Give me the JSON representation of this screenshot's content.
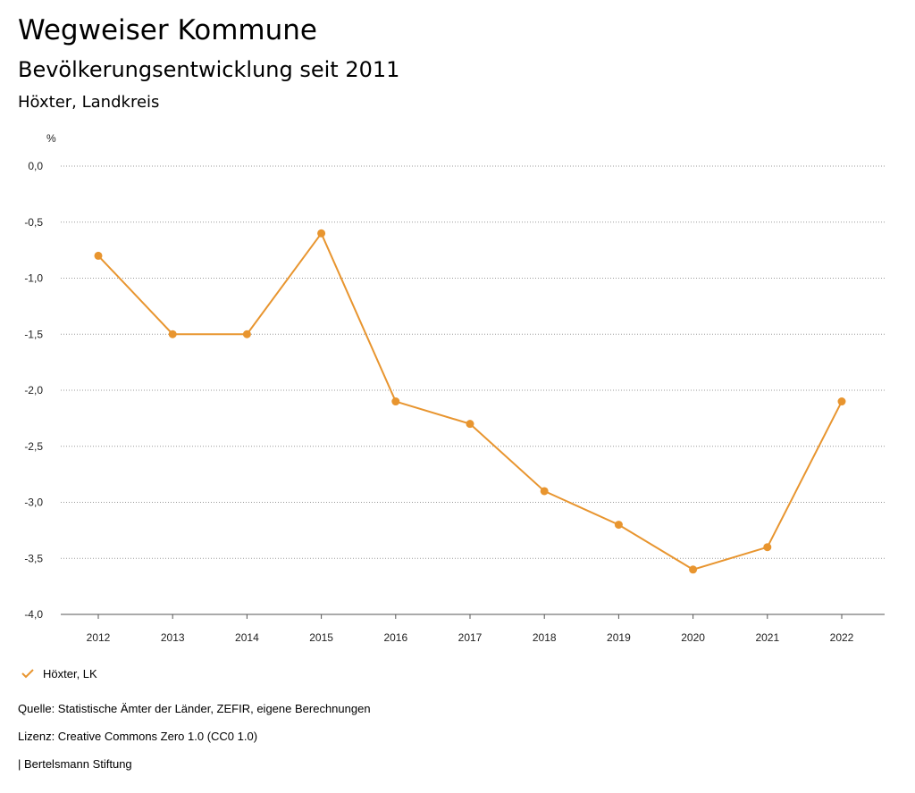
{
  "header": {
    "title": "Wegweiser Kommune",
    "subtitle": "Bevölkerungsentwicklung seit 2011",
    "region": "Höxter, Landkreis"
  },
  "chart_data": {
    "type": "line",
    "ylabel": "%",
    "xlabel": "",
    "ylim": [
      -4.0,
      0.0
    ],
    "y_ticks": [
      0.0,
      -0.5,
      -1.0,
      -1.5,
      -2.0,
      -2.5,
      -3.0,
      -3.5,
      -4.0
    ],
    "y_tick_labels": [
      "0,0",
      "-0,5",
      "-1,0",
      "-1,5",
      "-2,0",
      "-2,5",
      "-3,0",
      "-3,5",
      "-4,0"
    ],
    "categories": [
      "2012",
      "2013",
      "2014",
      "2015",
      "2016",
      "2017",
      "2018",
      "2019",
      "2020",
      "2021",
      "2022"
    ],
    "series": [
      {
        "name": "Höxter, LK",
        "color": "#e8952f",
        "values": [
          -0.8,
          -1.5,
          -1.5,
          -0.6,
          -2.1,
          -2.3,
          -2.9,
          -3.2,
          -3.6,
          -3.4,
          -2.1
        ]
      }
    ],
    "grid": true,
    "legend_position": "bottom-left"
  },
  "legend": {
    "label": "Höxter, LK"
  },
  "footer": {
    "source": "Quelle: Statistische Ämter der Länder, ZEFIR, eigene Berechnungen",
    "license": "Lizenz: Creative Commons Zero 1.0 (CC0 1.0)",
    "publisher": "| Bertelsmann Stiftung"
  }
}
